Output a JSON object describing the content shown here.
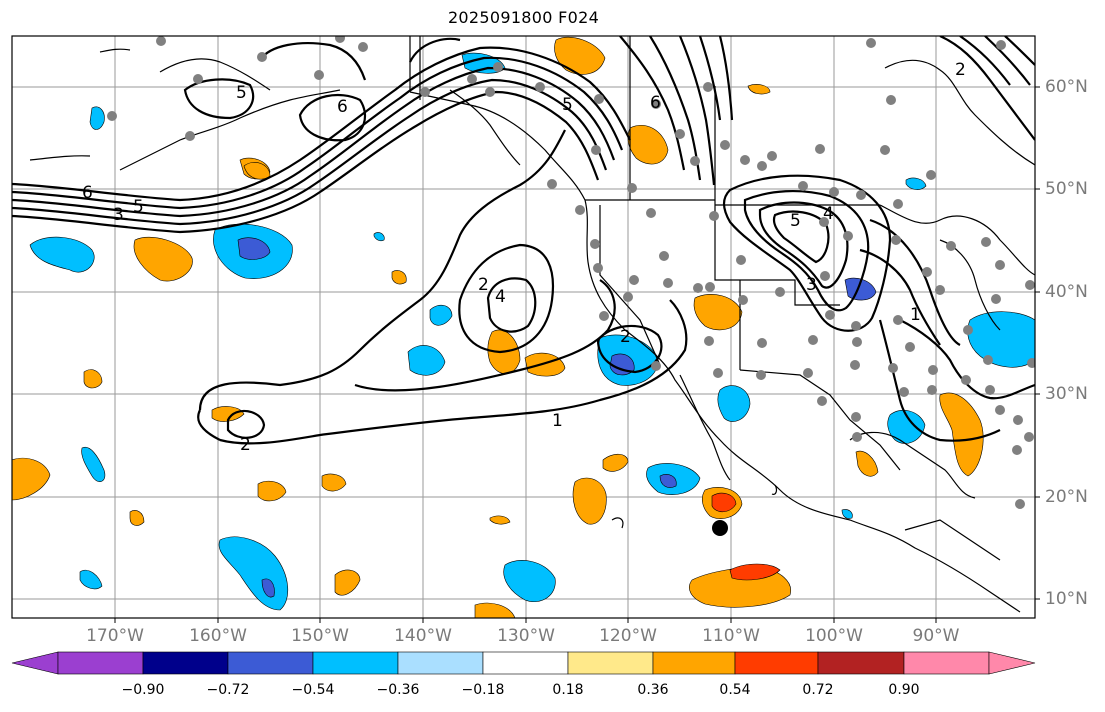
{
  "title": "2025091800 F024",
  "map": {
    "lon_labels": [
      "170°W",
      "160°W",
      "150°W",
      "140°W",
      "130°W",
      "120°W",
      "110°W",
      "100°W",
      "90°W"
    ],
    "lat_labels": [
      "60°N",
      "50°N",
      "40°N",
      "30°N",
      "20°N",
      "10°N"
    ],
    "contour_labels": [
      "6",
      "3",
      "5",
      "5",
      "6",
      "6",
      "5",
      "2",
      "4",
      "2",
      "2",
      "1",
      "5",
      "4",
      "3",
      "1",
      "2"
    ]
  },
  "colorbar": {
    "ticks": [
      "−0.90",
      "−0.72",
      "−0.54",
      "−0.36",
      "−0.18",
      "0.18",
      "0.36",
      "0.54",
      "0.72",
      "0.90"
    ],
    "colors": [
      "#9b3fd0",
      "#00008b",
      "#3c5bd5",
      "#00bfff",
      "#aadfff",
      "#ffffff",
      "#ffe98a",
      "#ffa500",
      "#ff3c00",
      "#b22222",
      "#ff88aa"
    ]
  }
}
